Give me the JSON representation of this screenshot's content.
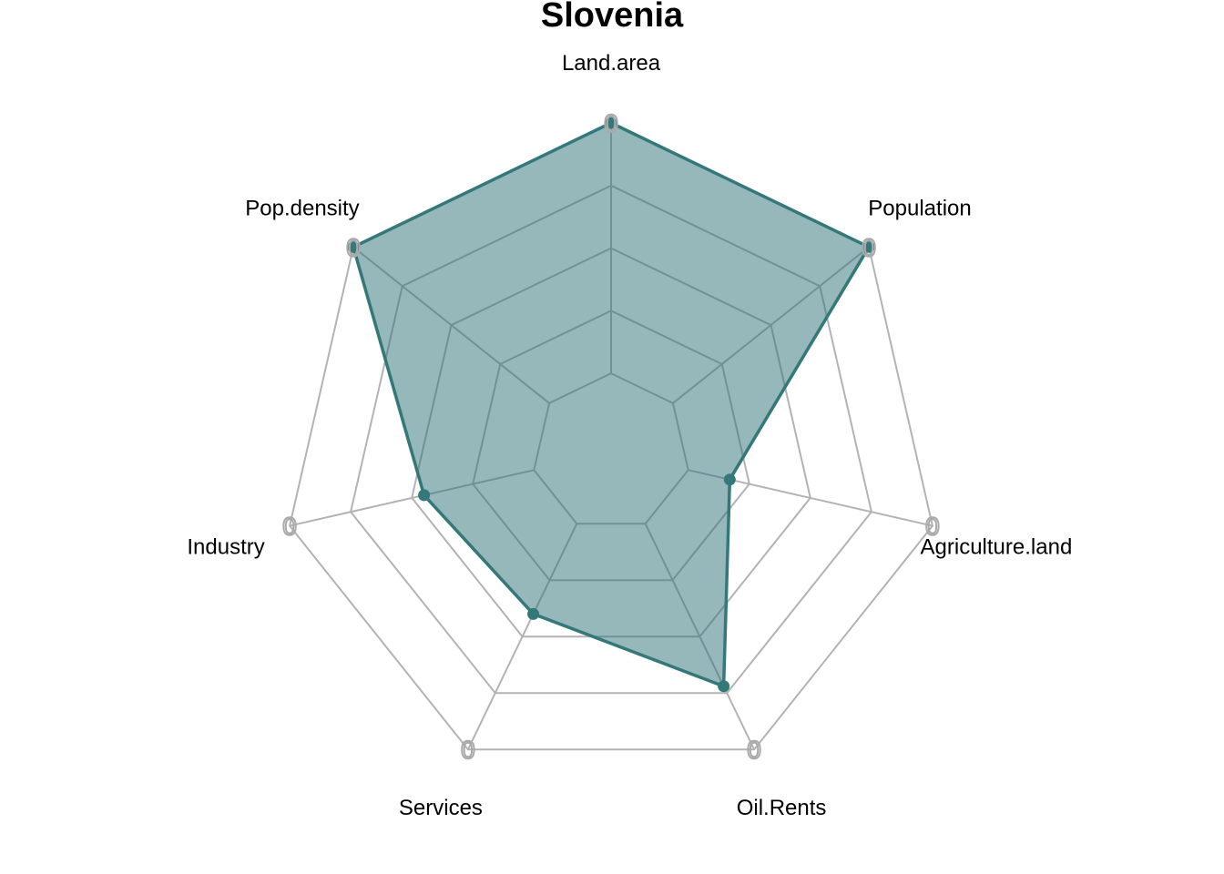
{
  "chart_data": {
    "type": "radar",
    "title": "Slovenia",
    "axes": [
      "Land.area",
      "Population",
      "Agriculture.land",
      "Oil.Rents",
      "Services",
      "Industry",
      "Pop.density"
    ],
    "series": [
      {
        "values": [
          1.0,
          1.0,
          0.17,
          0.72,
          0.4,
          0.45,
          1.0
        ]
      }
    ],
    "range": [
      0,
      1
    ],
    "grid_levels": 5,
    "min_marker_label": "0",
    "colors": {
      "series_line": "#34787a",
      "series_fill": "#2f7276",
      "grid": "#b3b3b3",
      "min_marker": "#aaaaaa"
    }
  }
}
